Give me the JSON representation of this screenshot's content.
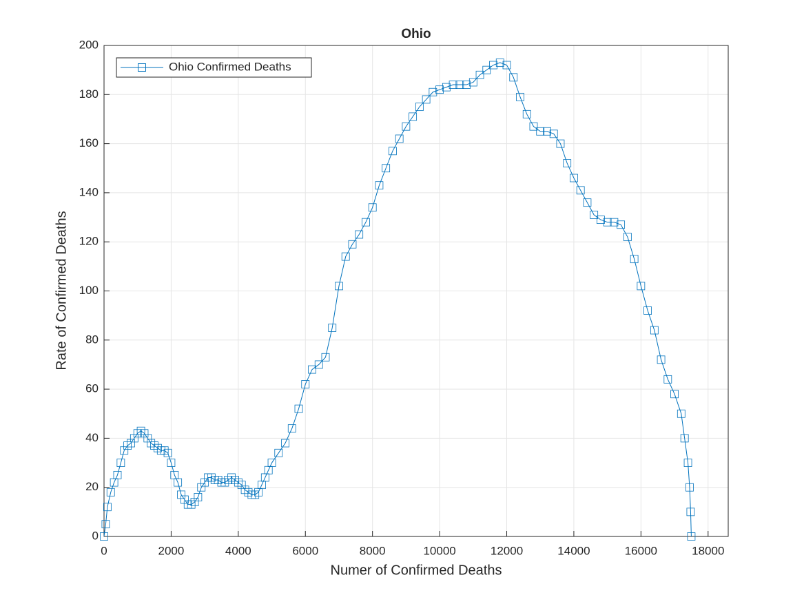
{
  "chart_data": {
    "type": "line",
    "title": "Ohio",
    "xlabel": "Numer of Confirmed Deaths",
    "ylabel": "Rate of Confirmed Deaths",
    "x": [
      0,
      50,
      100,
      200,
      300,
      400,
      500,
      600,
      700,
      800,
      900,
      1000,
      1100,
      1200,
      1300,
      1400,
      1500,
      1600,
      1700,
      1800,
      1900,
      2000,
      2100,
      2200,
      2300,
      2400,
      2500,
      2600,
      2700,
      2800,
      2900,
      3000,
      3100,
      3200,
      3300,
      3400,
      3500,
      3600,
      3700,
      3800,
      3900,
      4000,
      4100,
      4200,
      4300,
      4400,
      4500,
      4600,
      4700,
      4800,
      4900,
      5000,
      5200,
      5400,
      5600,
      5800,
      6000,
      6200,
      6400,
      6600,
      6800,
      7000,
      7200,
      7400,
      7600,
      7800,
      8000,
      8200,
      8400,
      8600,
      8800,
      9000,
      9200,
      9400,
      9600,
      9800,
      10000,
      10200,
      10400,
      10600,
      10800,
      11000,
      11200,
      11400,
      11600,
      11800,
      12000,
      12200,
      12400,
      12600,
      12800,
      13000,
      13200,
      13400,
      13600,
      13800,
      14000,
      14200,
      14400,
      14600,
      14800,
      15000,
      15200,
      15400,
      15600,
      15800,
      16000,
      16200,
      16400,
      16600,
      16800,
      17000,
      17200,
      17300,
      17400,
      17450,
      17480,
      17500
    ],
    "series": [
      {
        "name": "Ohio Confirmed Deaths",
        "color": "#0072bd",
        "values": [
          0,
          5,
          12,
          18,
          22,
          25,
          30,
          35,
          37,
          38,
          40,
          42,
          43,
          42,
          40,
          38,
          37,
          36,
          35,
          35,
          34,
          30,
          25,
          22,
          17,
          15,
          13,
          13,
          14,
          16,
          20,
          22,
          24,
          24,
          23,
          23,
          22,
          22,
          23,
          24,
          23,
          22,
          21,
          19,
          18,
          17,
          17,
          18,
          21,
          24,
          27,
          30,
          34,
          38,
          44,
          52,
          62,
          68,
          70,
          73,
          85,
          102,
          114,
          119,
          123,
          128,
          134,
          143,
          150,
          157,
          162,
          167,
          171,
          175,
          178,
          181,
          182,
          183,
          184,
          184,
          184,
          185,
          188,
          190,
          192,
          193,
          192,
          187,
          179,
          172,
          167,
          165,
          165,
          164,
          160,
          152,
          146,
          141,
          136,
          131,
          129,
          128,
          128,
          127,
          122,
          113,
          102,
          92,
          84,
          72,
          64,
          58,
          50,
          40,
          30,
          20,
          10,
          0
        ]
      }
    ],
    "xlim": [
      0,
      18600
    ],
    "ylim": [
      0,
      200
    ],
    "xticks": [
      0,
      2000,
      4000,
      6000,
      8000,
      10000,
      12000,
      14000,
      16000,
      18000
    ],
    "yticks": [
      0,
      20,
      40,
      60,
      80,
      100,
      120,
      140,
      160,
      180,
      200
    ],
    "grid": true,
    "legend": "top-left"
  }
}
